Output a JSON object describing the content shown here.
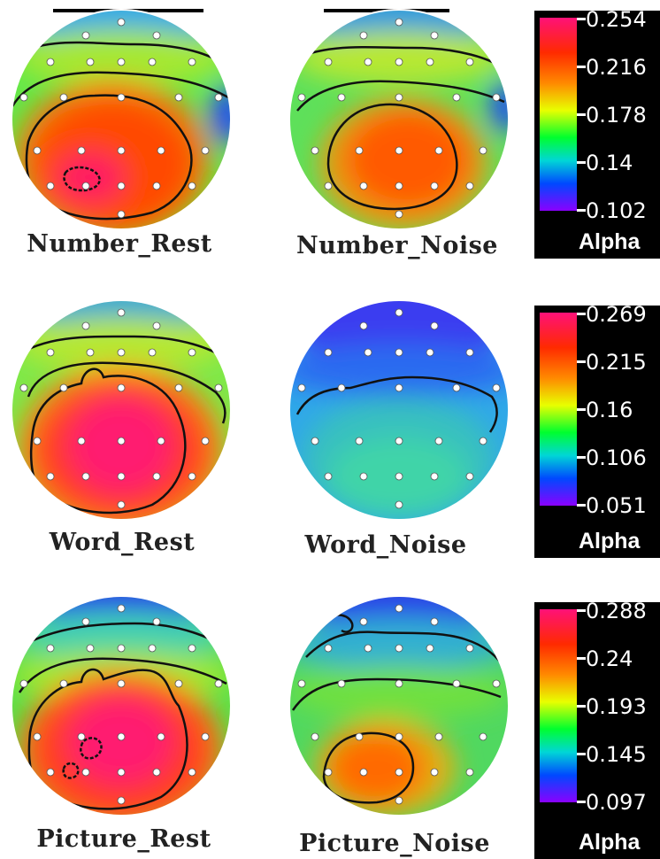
{
  "panels": [
    {
      "label": "Number_Rest",
      "palette": "warm"
    },
    {
      "label": "Number_Noise",
      "palette": "warm-mid"
    },
    {
      "label": "Word_Rest",
      "palette": "warm"
    },
    {
      "label": "Word_Noise",
      "palette": "cool"
    },
    {
      "label": "Picture_Rest",
      "palette": "warm"
    },
    {
      "label": "Picture_Noise",
      "palette": "warm-mid"
    }
  ],
  "scales": [
    {
      "ticks": [
        "0.254",
        "0.216",
        "0.178",
        "0.14",
        "0.102"
      ],
      "unit": "Alpha"
    },
    {
      "ticks": [
        "0.269",
        "0.215",
        "0.16",
        "0.106",
        "0.051"
      ],
      "unit": "Alpha"
    },
    {
      "ticks": [
        "0.288",
        "0.24",
        "0.193",
        "0.145",
        "0.097"
      ],
      "unit": "Alpha"
    }
  ],
  "colors": {
    "scale_top": "#ff1178",
    "scale_high": "#ff2a00",
    "scale_mid": "#00ff2e",
    "scale_low": "#0048ff",
    "scale_bottom": "#8a00ff"
  }
}
